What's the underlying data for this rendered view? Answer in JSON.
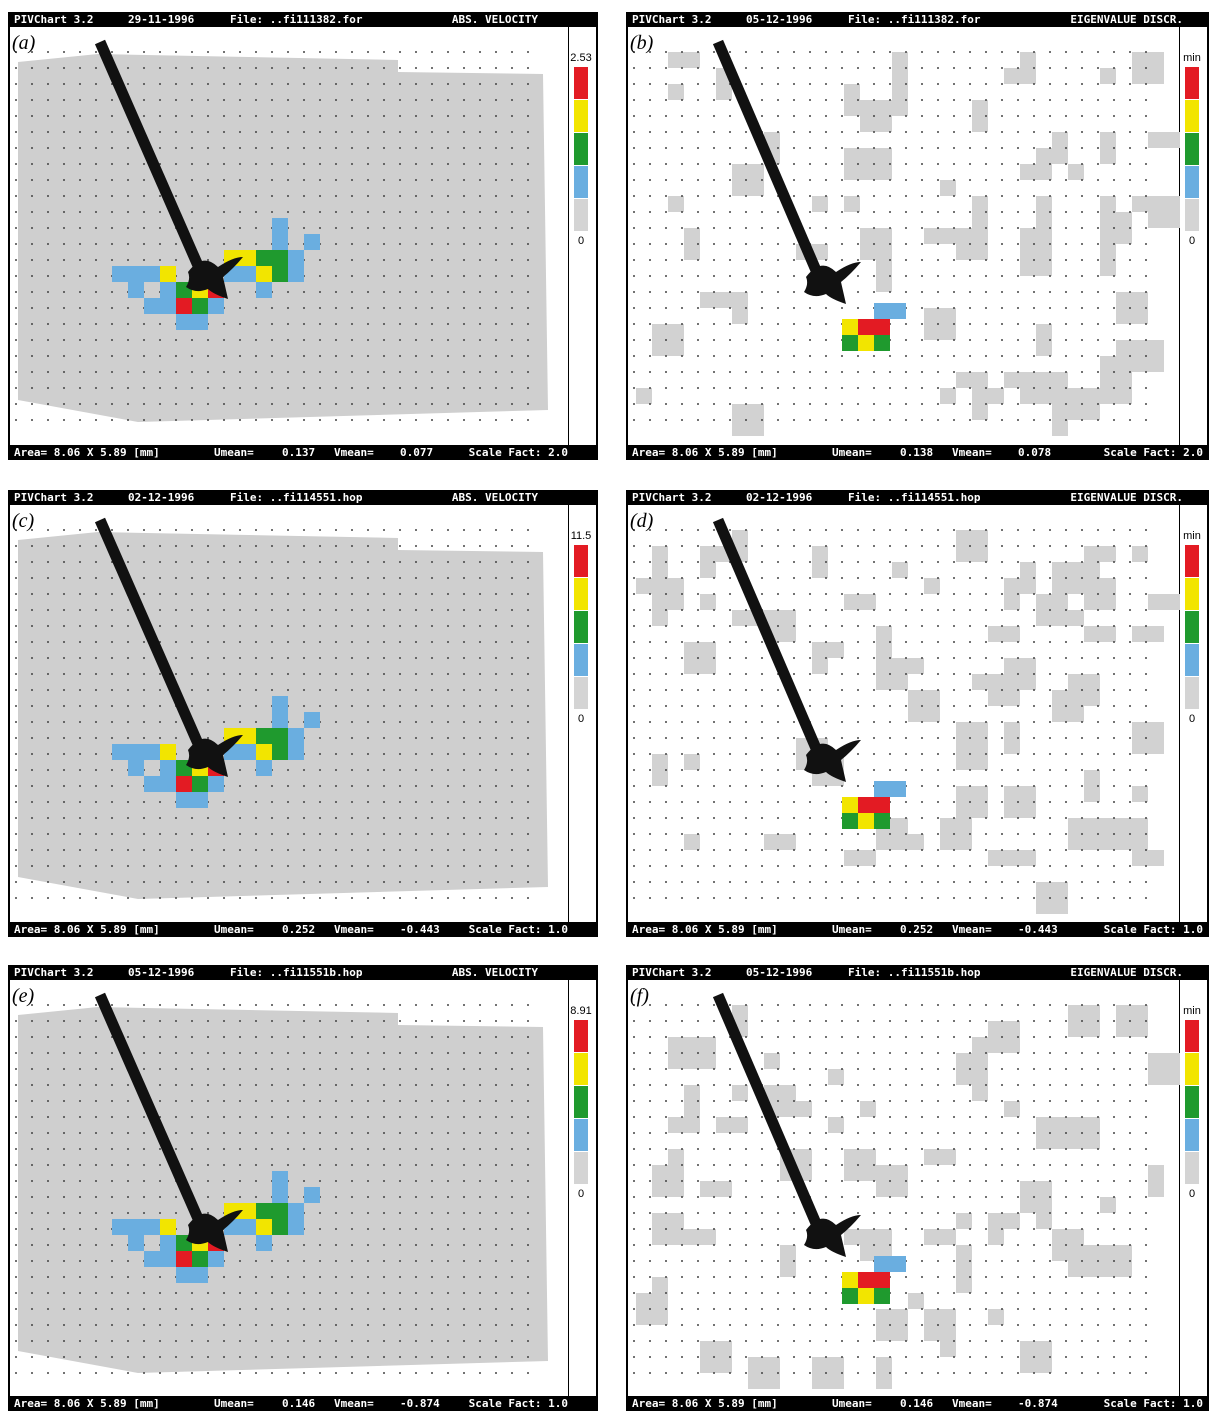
{
  "panels": [
    {
      "label": "(a)",
      "header": {
        "program": "PIVChart 3.2",
        "date": "29-11-1996",
        "file": "File: ..fi111382.for",
        "mode": "ABS. VELOCITY"
      },
      "scale": {
        "top": "2.53",
        "bottom": "0"
      },
      "footer": {
        "area": "Area= 8.06 X 5.89 [mm]",
        "umean_label": "Umean=",
        "umean": "0.137",
        "vmean_label": "Vmean=",
        "vmean": "0.077",
        "scale_fact": "Scale Fact: 2.0"
      }
    },
    {
      "label": "(b)",
      "header": {
        "program": "PIVChart 3.2",
        "date": "05-12-1996",
        "file": "File: ..fi111382.for",
        "mode": "EIGENVALUE DISCR."
      },
      "scale": {
        "top": "min",
        "bottom": "0"
      },
      "footer": {
        "area": "Area= 8.06 X 5.89 [mm]",
        "umean_label": "Umean=",
        "umean": "0.138",
        "vmean_label": "Vmean=",
        "vmean": "0.078",
        "scale_fact": "Scale Fact: 2.0"
      }
    },
    {
      "label": "(c)",
      "header": {
        "program": "PIVChart 3.2",
        "date": "02-12-1996",
        "file": "File: ..fi114551.hop",
        "mode": "ABS. VELOCITY"
      },
      "scale": {
        "top": "11.5",
        "bottom": "0"
      },
      "footer": {
        "area": "Area= 8.06 X 5.89 [mm]",
        "umean_label": "Umean=",
        "umean": "0.252",
        "vmean_label": "Vmean=",
        "vmean": "-0.443",
        "scale_fact": "Scale Fact: 1.0"
      }
    },
    {
      "label": "(d)",
      "header": {
        "program": "PIVChart 3.2",
        "date": "02-12-1996",
        "file": "File: ..fi114551.hop",
        "mode": "EIGENVALUE DISCR."
      },
      "scale": {
        "top": "min",
        "bottom": "0"
      },
      "footer": {
        "area": "Area= 8.06 X 5.89 [mm]",
        "umean_label": "Umean=",
        "umean": "0.252",
        "vmean_label": "Vmean=",
        "vmean": "-0.443",
        "scale_fact": "Scale Fact: 1.0"
      }
    },
    {
      "label": "(e)",
      "header": {
        "program": "PIVChart 3.2",
        "date": "05-12-1996",
        "file": "File: ..fi11551b.hop",
        "mode": "ABS. VELOCITY"
      },
      "scale": {
        "top": "8.91",
        "bottom": "0"
      },
      "footer": {
        "area": "Area= 8.06 X 5.89 [mm]",
        "umean_label": "Umean=",
        "umean": "0.146",
        "vmean_label": "Vmean=",
        "vmean": "-0.874",
        "scale_fact": "Scale Fact: 1.0"
      }
    },
    {
      "label": "(f)",
      "header": {
        "program": "PIVChart 3.2",
        "date": "05-12-1996",
        "file": "File: ..fi11551b.hop",
        "mode": "EIGENVALUE DISCR."
      },
      "scale": {
        "top": "min",
        "bottom": "0"
      },
      "footer": {
        "area": "Area= 8.06 X 5.89 [mm]",
        "umean_label": "Umean=",
        "umean": "0.146",
        "vmean_label": "Vmean=",
        "vmean": "-0.874",
        "scale_fact": "Scale Fact: 1.0"
      }
    }
  ]
}
